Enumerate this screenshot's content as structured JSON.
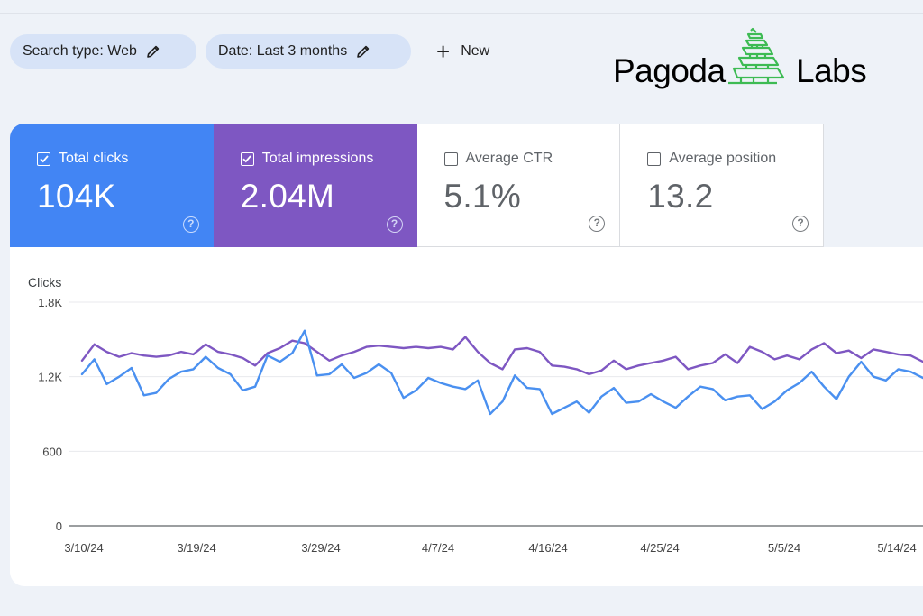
{
  "filters": {
    "search_type": "Search type: Web",
    "date": "Date: Last 3 months",
    "new_label": "New"
  },
  "logo": {
    "word_left": "Pagoda",
    "word_right": "Labs",
    "accent_color": "#3dbb53"
  },
  "metrics": [
    {
      "label": "Total clicks",
      "value": "104K",
      "checked": true,
      "color": "#4285f4"
    },
    {
      "label": "Total impressions",
      "value": "2.04M",
      "checked": true,
      "color": "#7e57c2"
    },
    {
      "label": "Average CTR",
      "value": "5.1%",
      "checked": false
    },
    {
      "label": "Average position",
      "value": "13.2",
      "checked": false
    }
  ],
  "chart_data": {
    "type": "line",
    "ylabel": "Clicks",
    "ylim": [
      0,
      1800
    ],
    "yticks": [
      "0",
      "600",
      "1.2K",
      "1.8K"
    ],
    "xticks": [
      "3/10/24",
      "3/19/24",
      "3/29/24",
      "4/7/24",
      "4/16/24",
      "4/25/24",
      "5/5/24",
      "5/14/24"
    ],
    "grid": true,
    "series": [
      {
        "color": "#7e57c2",
        "values": [
          1330,
          1460,
          1400,
          1360,
          1390,
          1370,
          1360,
          1370,
          1400,
          1380,
          1460,
          1400,
          1380,
          1350,
          1290,
          1390,
          1430,
          1490,
          1470,
          1400,
          1330,
          1370,
          1400,
          1440,
          1450,
          1440,
          1430,
          1440,
          1430,
          1440,
          1420,
          1520,
          1400,
          1310,
          1260,
          1420,
          1430,
          1400,
          1290,
          1280,
          1260,
          1220,
          1250,
          1330,
          1260,
          1290,
          1310,
          1330,
          1360,
          1260,
          1290,
          1310,
          1380,
          1310,
          1440,
          1400,
          1340,
          1370,
          1340,
          1420,
          1470,
          1390,
          1410,
          1350,
          1420,
          1400,
          1380,
          1370,
          1320
        ]
      },
      {
        "color": "#4a90f0",
        "values": [
          1220,
          1340,
          1140,
          1200,
          1270,
          1050,
          1070,
          1180,
          1240,
          1260,
          1360,
          1270,
          1220,
          1090,
          1120,
          1370,
          1320,
          1390,
          1570,
          1210,
          1220,
          1300,
          1190,
          1230,
          1300,
          1230,
          1030,
          1090,
          1190,
          1150,
          1120,
          1100,
          1170,
          900,
          1000,
          1210,
          1110,
          1100,
          900,
          950,
          1000,
          910,
          1040,
          1110,
          990,
          1000,
          1060,
          1000,
          950,
          1040,
          1120,
          1100,
          1010,
          1040,
          1050,
          940,
          1000,
          1090,
          1150,
          1240,
          1120,
          1020,
          1200,
          1320,
          1200,
          1170,
          1260,
          1240,
          1190
        ]
      }
    ]
  }
}
